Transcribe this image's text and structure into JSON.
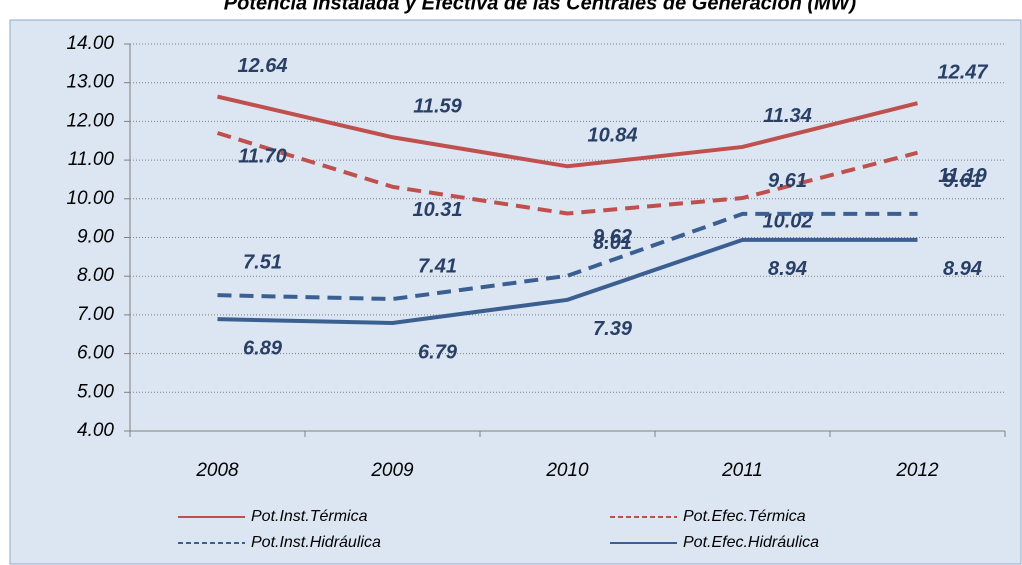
{
  "chart_data": {
    "type": "line",
    "title": "Potencia Instalada y Efectiva de las Centrales de Generación (MW)",
    "categories": [
      "2008",
      "2009",
      "2010",
      "2011",
      "2012"
    ],
    "series": [
      {
        "name": "Pot.Inst.Térmica",
        "color": "#c0504d",
        "dash": false,
        "values": [
          12.64,
          11.59,
          10.84,
          11.34,
          12.47
        ],
        "value_labels": [
          "12.64",
          "11.59",
          "10.84",
          "11.34",
          "12.47"
        ]
      },
      {
        "name": "Pot.Efec.Térmica",
        "color": "#c0504d",
        "dash": true,
        "values": [
          11.7,
          10.31,
          9.62,
          10.02,
          11.19
        ],
        "value_labels": [
          "11.70",
          "10.31",
          "9.62",
          "10.02",
          "11.19"
        ]
      },
      {
        "name": "Pot.Inst.Hidráulica",
        "color": "#3c5f91",
        "dash": true,
        "values": [
          7.51,
          7.41,
          8.01,
          9.61,
          9.61
        ],
        "value_labels": [
          "7.51",
          "7.41",
          "8.01",
          "9.61",
          "9.61"
        ]
      },
      {
        "name": "Pot.Efec.Hidráulica",
        "color": "#3c5f91",
        "dash": false,
        "values": [
          6.89,
          6.79,
          7.39,
          8.94,
          8.94
        ],
        "value_labels": [
          "6.89",
          "6.79",
          "7.39",
          "8.94",
          "8.94"
        ]
      }
    ],
    "ylim": [
      4,
      14
    ],
    "yticks": [
      {
        "value": 4,
        "label": "4.00"
      },
      {
        "value": 5,
        "label": "5.00"
      },
      {
        "value": 6,
        "label": "6.00"
      },
      {
        "value": 7,
        "label": "7.00"
      },
      {
        "value": 8,
        "label": "8.00"
      },
      {
        "value": 9,
        "label": "9.00"
      },
      {
        "value": 10,
        "label": "10.00"
      },
      {
        "value": 11,
        "label": "11.00"
      },
      {
        "value": 12,
        "label": "12.00"
      },
      {
        "value": 13,
        "label": "13.00"
      },
      {
        "value": 14,
        "label": "14.00"
      }
    ],
    "grid": true,
    "legend": "bottom"
  }
}
